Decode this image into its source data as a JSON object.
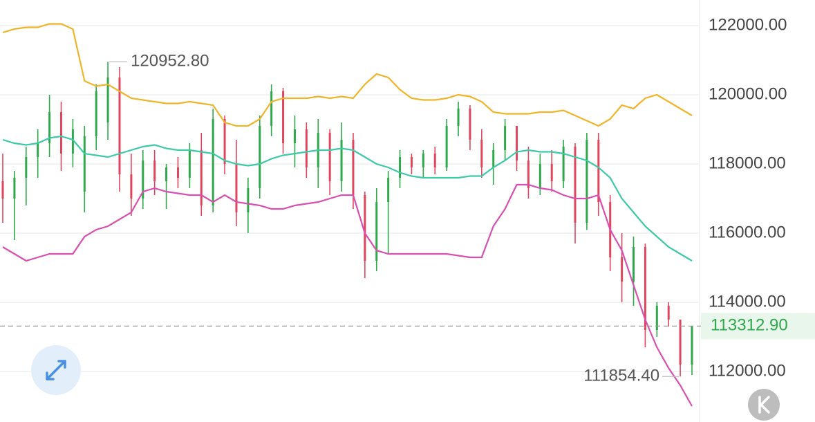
{
  "chart_data": {
    "type": "candlestick",
    "up_color": "#2ea84a",
    "down_color": "#e0455e",
    "candles": {
      "open": [
        117500,
        117000,
        117600,
        118200,
        118600,
        119500,
        118300,
        117200,
        118800,
        119200,
        120500,
        117700,
        117000,
        118100,
        117500,
        117900,
        117600,
        118400,
        116800,
        119300,
        118000,
        116600,
        117300,
        119100,
        120100,
        118600,
        119000,
        117900,
        118900,
        117500,
        118700,
        117100,
        115200,
        116900,
        117600,
        118200,
        117900,
        118300,
        117900,
        119100,
        119600,
        118700,
        117900,
        118400,
        119100,
        118100,
        117300,
        118000,
        117500,
        118500,
        116300,
        118700,
        116900,
        115300,
        114600,
        115600,
        113200,
        113900,
        113500,
        112200
      ],
      "high": [
        118300,
        117800,
        118500,
        119000,
        120000,
        119800,
        119300,
        119100,
        120300,
        120952.8,
        120800,
        118300,
        118400,
        118400,
        118000,
        118200,
        118600,
        118900,
        119600,
        119400,
        118700,
        117600,
        119400,
        120300,
        120200,
        119400,
        119200,
        119300,
        119000,
        119200,
        118900,
        117200,
        117300,
        117800,
        118400,
        118300,
        118400,
        118500,
        119300,
        119800,
        119700,
        119000,
        118600,
        119300,
        119100,
        118500,
        118300,
        118400,
        118700,
        118600,
        118900,
        118900,
        117100,
        116000,
        115900,
        115700,
        114000,
        114000,
        113500,
        113312.9
      ],
      "low": [
        116300,
        115800,
        116800,
        117600,
        118200,
        117800,
        117900,
        116600,
        118400,
        118700,
        117200,
        116500,
        116700,
        117100,
        116700,
        117300,
        117300,
        116500,
        116600,
        117700,
        116200,
        116000,
        117000,
        118800,
        118300,
        117900,
        117600,
        117300,
        117100,
        117200,
        116700,
        114700,
        114900,
        115400,
        117300,
        117700,
        117600,
        117700,
        117800,
        118800,
        118400,
        117600,
        117400,
        118100,
        117800,
        117000,
        117100,
        117200,
        117300,
        115700,
        116100,
        116500,
        114900,
        114000,
        113900,
        112700,
        113000,
        113300,
        111854.4,
        111900
      ],
      "close": [
        117000,
        117600,
        118200,
        118600,
        119500,
        118300,
        119000,
        118800,
        120100,
        120500,
        117700,
        117000,
        118100,
        117500,
        117900,
        117600,
        118400,
        116800,
        119300,
        118000,
        116600,
        117300,
        119100,
        120100,
        118600,
        119000,
        117900,
        118900,
        117500,
        118700,
        117100,
        115200,
        116900,
        117600,
        118200,
        117900,
        118300,
        117900,
        119100,
        119600,
        118700,
        117900,
        118400,
        119100,
        118100,
        117300,
        118000,
        117500,
        118500,
        116300,
        118700,
        116900,
        115300,
        114600,
        115600,
        113200,
        113900,
        113500,
        112200,
        113312.9
      ]
    },
    "bands": [
      {
        "color": "#f0b429",
        "values": [
          121800,
          121900,
          121950,
          121950,
          122050,
          122050,
          121900,
          120400,
          120250,
          120300,
          120100,
          119900,
          119850,
          119800,
          119750,
          119750,
          119800,
          119750,
          119700,
          119200,
          119100,
          119100,
          119300,
          119800,
          119900,
          119900,
          119900,
          119950,
          119900,
          119950,
          119900,
          120300,
          120600,
          120500,
          120150,
          119900,
          119850,
          119850,
          119900,
          120000,
          119950,
          119800,
          119500,
          119450,
          119450,
          119450,
          119500,
          119500,
          119550,
          119400,
          119250,
          119100,
          119300,
          119700,
          119600,
          119900,
          120000,
          119800,
          119600,
          119400
        ]
      },
      {
        "color": "#3cc9a6",
        "values": [
          118700,
          118600,
          118550,
          118600,
          118750,
          118800,
          118700,
          118300,
          118250,
          118200,
          118300,
          118400,
          118500,
          118550,
          118450,
          118400,
          118400,
          118350,
          118300,
          118100,
          118000,
          117950,
          118000,
          118150,
          118250,
          118300,
          118350,
          118400,
          118400,
          118450,
          118400,
          118200,
          118000,
          117900,
          117750,
          117650,
          117600,
          117600,
          117600,
          117600,
          117650,
          117650,
          117900,
          118100,
          118350,
          118400,
          118350,
          118350,
          118300,
          118200,
          118100,
          117900,
          117600,
          117000,
          116600,
          116200,
          115900,
          115600,
          115400,
          115200
        ]
      },
      {
        "color": "#d84fb0",
        "values": [
          115600,
          115400,
          115200,
          115300,
          115400,
          115400,
          115400,
          115900,
          116100,
          116200,
          116400,
          116600,
          117200,
          117300,
          117200,
          117150,
          117100,
          117100,
          116900,
          117100,
          116900,
          116850,
          116800,
          116700,
          116700,
          116800,
          116850,
          116900,
          117000,
          117100,
          117100,
          116000,
          115500,
          115400,
          115400,
          115400,
          115400,
          115400,
          115400,
          115350,
          115300,
          115300,
          116200,
          116700,
          117400,
          117400,
          117300,
          117250,
          117100,
          117000,
          117000,
          117100,
          116100,
          115500,
          114500,
          113500,
          112700,
          112100,
          111600,
          111000
        ]
      }
    ],
    "ylim": [
      110540,
      122740
    ],
    "yticks": [
      {
        "value": 112000,
        "label": "112000.00"
      },
      {
        "value": 114000,
        "label": "114000.00"
      },
      {
        "value": 116000,
        "label": "116000.00"
      },
      {
        "value": 118000,
        "label": "118000.00"
      },
      {
        "value": 120000,
        "label": "120000.00"
      },
      {
        "value": 122000,
        "label": "122000.00"
      }
    ],
    "grid": true,
    "max_label": {
      "value": 120952.8,
      "label": "120952.80"
    },
    "min_label": {
      "value": 111854.4,
      "label": "111854.40"
    },
    "last_price": {
      "value": 113312.9,
      "label": "113312.90"
    }
  }
}
